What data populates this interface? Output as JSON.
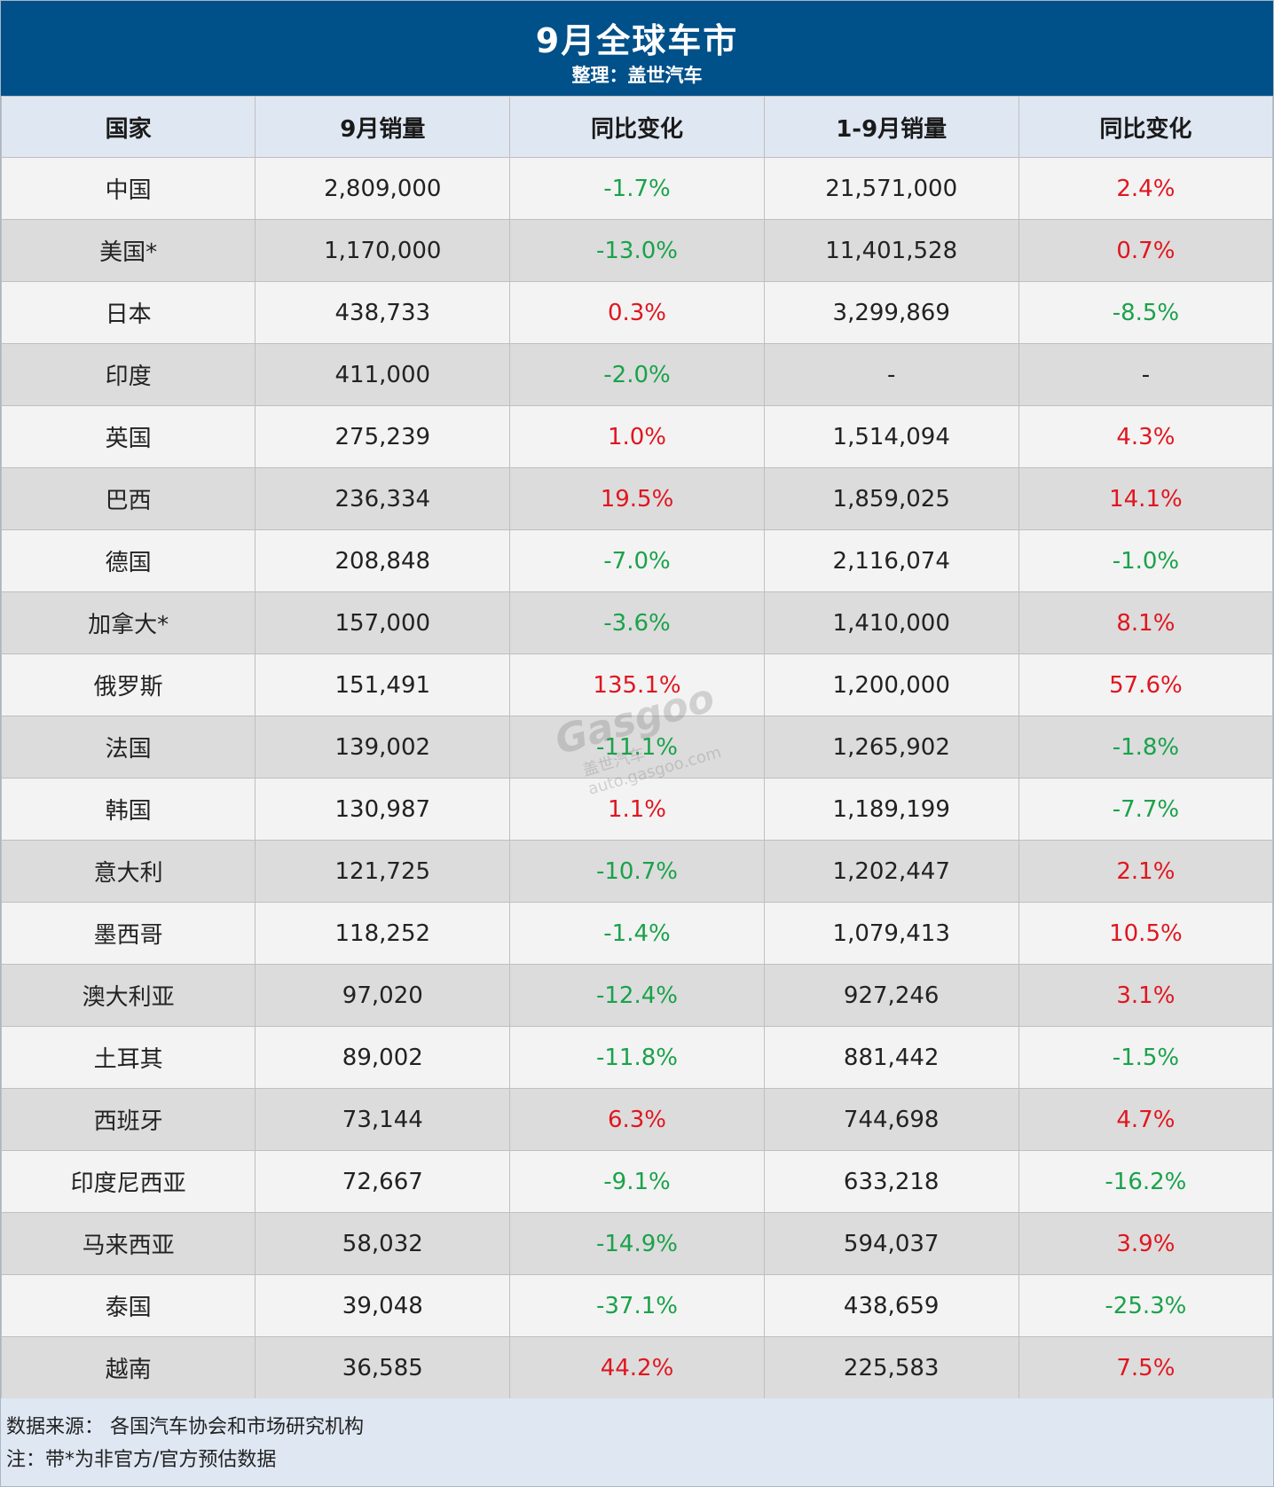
{
  "header": {
    "title": "9月全球车市",
    "subtitle": "整理：盖世汽车"
  },
  "table": {
    "columns": [
      "国家",
      "9月销量",
      "同比变化",
      "1-9月销量",
      "同比变化"
    ],
    "rows": [
      {
        "country": "中国",
        "sep": "2,809,000",
        "sep_yoy": "-1.7%",
        "ytd": "21,571,000",
        "ytd_yoy": "2.4%"
      },
      {
        "country": "美国*",
        "sep": "1,170,000",
        "sep_yoy": "-13.0%",
        "ytd": "11,401,528",
        "ytd_yoy": "0.7%"
      },
      {
        "country": "日本",
        "sep": "438,733",
        "sep_yoy": "0.3%",
        "ytd": "3,299,869",
        "ytd_yoy": "-8.5%"
      },
      {
        "country": "印度",
        "sep": "411,000",
        "sep_yoy": "-2.0%",
        "ytd": "-",
        "ytd_yoy": "-"
      },
      {
        "country": "英国",
        "sep": "275,239",
        "sep_yoy": "1.0%",
        "ytd": "1,514,094",
        "ytd_yoy": "4.3%"
      },
      {
        "country": "巴西",
        "sep": "236,334",
        "sep_yoy": "19.5%",
        "ytd": "1,859,025",
        "ytd_yoy": "14.1%"
      },
      {
        "country": "德国",
        "sep": "208,848",
        "sep_yoy": "-7.0%",
        "ytd": "2,116,074",
        "ytd_yoy": "-1.0%"
      },
      {
        "country": "加拿大*",
        "sep": "157,000",
        "sep_yoy": "-3.6%",
        "ytd": "1,410,000",
        "ytd_yoy": "8.1%"
      },
      {
        "country": "俄罗斯",
        "sep": "151,491",
        "sep_yoy": "135.1%",
        "ytd": "1,200,000",
        "ytd_yoy": "57.6%"
      },
      {
        "country": "法国",
        "sep": "139,002",
        "sep_yoy": "-11.1%",
        "ytd": "1,265,902",
        "ytd_yoy": "-1.8%"
      },
      {
        "country": "韩国",
        "sep": "130,987",
        "sep_yoy": "1.1%",
        "ytd": "1,189,199",
        "ytd_yoy": "-7.7%"
      },
      {
        "country": "意大利",
        "sep": "121,725",
        "sep_yoy": "-10.7%",
        "ytd": "1,202,447",
        "ytd_yoy": "2.1%"
      },
      {
        "country": "墨西哥",
        "sep": "118,252",
        "sep_yoy": "-1.4%",
        "ytd": "1,079,413",
        "ytd_yoy": "10.5%"
      },
      {
        "country": "澳大利亚",
        "sep": "97,020",
        "sep_yoy": "-12.4%",
        "ytd": "927,246",
        "ytd_yoy": "3.1%"
      },
      {
        "country": "土耳其",
        "sep": "89,002",
        "sep_yoy": "-11.8%",
        "ytd": "881,442",
        "ytd_yoy": "-1.5%"
      },
      {
        "country": "西班牙",
        "sep": "73,144",
        "sep_yoy": "6.3%",
        "ytd": "744,698",
        "ytd_yoy": "4.7%"
      },
      {
        "country": "印度尼西亚",
        "sep": "72,667",
        "sep_yoy": "-9.1%",
        "ytd": "633,218",
        "ytd_yoy": "-16.2%"
      },
      {
        "country": "马来西亚",
        "sep": "58,032",
        "sep_yoy": "-14.9%",
        "ytd": "594,037",
        "ytd_yoy": "3.9%"
      },
      {
        "country": "泰国",
        "sep": "39,048",
        "sep_yoy": "-37.1%",
        "ytd": "438,659",
        "ytd_yoy": "-25.3%"
      },
      {
        "country": "越南",
        "sep": "36,585",
        "sep_yoy": "44.2%",
        "ytd": "225,583",
        "ytd_yoy": "7.5%"
      }
    ]
  },
  "footer": {
    "source": "数据来源： 各国汽车协会和市场研究机构",
    "note": "注：带*为非官方/官方预估数据"
  },
  "watermark": {
    "logo": "Gasgoo",
    "cn": "盖世汽车",
    "url": "auto.gasgoo.com"
  },
  "colors": {
    "header_bg": "#00508a",
    "column_header_bg": "#dfe7f2",
    "row_light": "#f3f3f3",
    "row_dark": "#dcdcdc",
    "negative": "#1aa24a",
    "positive": "#e0161f"
  }
}
